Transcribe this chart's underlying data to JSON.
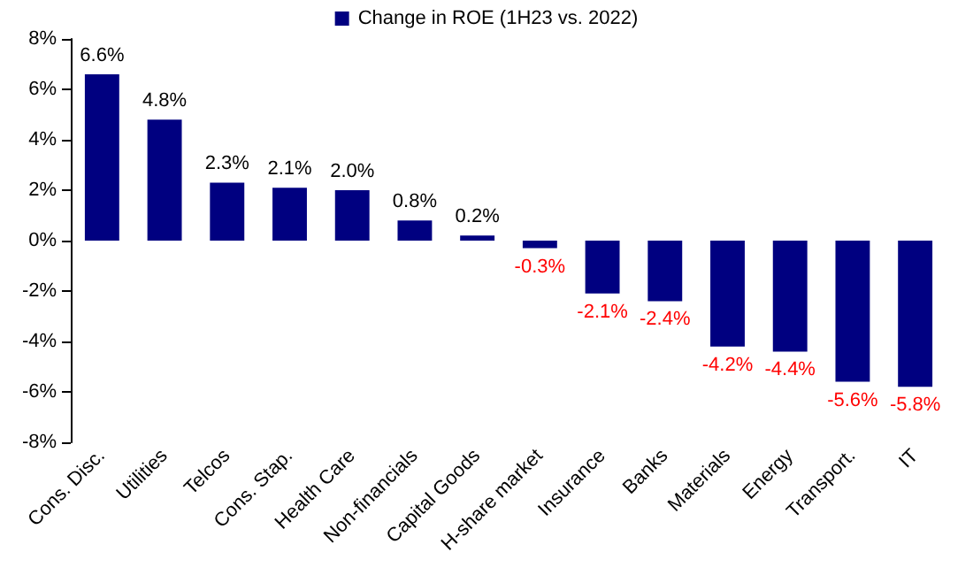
{
  "chart_data": {
    "type": "bar",
    "categories": [
      "Cons. Disc.",
      "Utilities",
      "Telcos",
      "Cons. Stap.",
      "Health Care",
      "Non-financials",
      "Capital Goods",
      "H-share market",
      "Insurance",
      "Banks",
      "Materials",
      "Energy",
      "Transport.",
      "IT"
    ],
    "series": [
      {
        "name": "Change in ROE (1H23 vs. 2022)",
        "color": "#000080",
        "values": [
          6.6,
          4.8,
          2.3,
          2.1,
          2.0,
          0.8,
          0.2,
          -0.3,
          -2.1,
          -2.4,
          -4.2,
          -4.4,
          -5.6,
          -5.8
        ],
        "value_labels": [
          "6.6%",
          "4.8%",
          "2.3%",
          "2.1%",
          "2.0%",
          "0.8%",
          "0.2%",
          "-0.3%",
          "-2.1%",
          "-2.4%",
          "-4.2%",
          "-4.4%",
          "-5.6%",
          "-5.8%"
        ]
      }
    ],
    "ylim": [
      -8,
      8
    ],
    "yticks": [
      {
        "value": -8,
        "label": "-8%"
      },
      {
        "value": -6,
        "label": "-6%"
      },
      {
        "value": -4,
        "label": "-4%"
      },
      {
        "value": -2,
        "label": "-2%"
      },
      {
        "value": 0,
        "label": "0%"
      },
      {
        "value": 2,
        "label": "2%"
      },
      {
        "value": 4,
        "label": "4%"
      },
      {
        "value": 6,
        "label": "6%"
      },
      {
        "value": 8,
        "label": "8%"
      }
    ],
    "grid": false,
    "legend": "top"
  }
}
